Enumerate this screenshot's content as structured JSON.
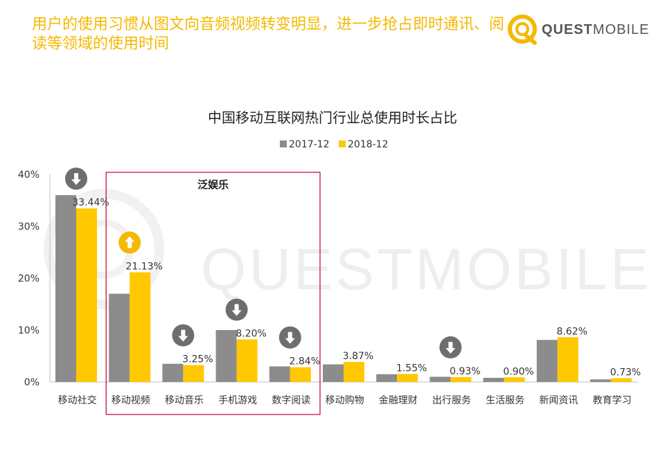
{
  "header": {
    "headline": "用户的使用习惯从图文向音频视频转变明显，进一步抢占即时通讯、阅读等领域的使用时间",
    "logo_bold": "QUEST",
    "logo_light": "MOBILE"
  },
  "watermark": "QUESTMOBILE",
  "colors": {
    "series_2017": "#8c8c8c",
    "series_2018": "#ffc800",
    "headline": "#f5b800",
    "highlight_box": "#c0002a",
    "arrow_down": "#6e6e6e",
    "arrow_up": "#f5b800"
  },
  "chart_data": {
    "type": "bar",
    "title": "中国移动互联网热门行业总使用时长占比",
    "categories": [
      "移动社交",
      "移动视频",
      "移动音乐",
      "手机游戏",
      "数字阅读",
      "移动购物",
      "金融理财",
      "出行服务",
      "生活服务",
      "新闻资讯",
      "教育学习"
    ],
    "series": [
      {
        "name": "2017-12",
        "values": [
          36.0,
          17.0,
          3.5,
          10.0,
          3.0,
          3.4,
          1.5,
          1.0,
          0.8,
          8.1,
          0.5
        ]
      },
      {
        "name": "2018-12",
        "values": [
          33.44,
          21.13,
          3.25,
          8.2,
          2.84,
          3.87,
          1.55,
          0.93,
          0.9,
          8.62,
          0.73
        ]
      }
    ],
    "data_labels": [
      "33.44%",
      "21.13%",
      "3.25%",
      "8.20%",
      "2.84%",
      "3.87%",
      "1.55%",
      "0.93%",
      "0.90%",
      "8.62%",
      "0.73%"
    ],
    "ylim": [
      0,
      40
    ],
    "yticks": [
      "0%",
      "10%",
      "20%",
      "30%",
      "40%"
    ],
    "legend_position": "top-center",
    "grid": false,
    "highlight_region": {
      "label": "泛娱乐",
      "categories": [
        "移动视频",
        "移动音乐",
        "手机游戏",
        "数字阅读"
      ]
    },
    "trend_arrows": [
      {
        "category": "移动社交",
        "direction": "down"
      },
      {
        "category": "移动视频",
        "direction": "up"
      },
      {
        "category": "移动音乐",
        "direction": "down"
      },
      {
        "category": "手机游戏",
        "direction": "down"
      },
      {
        "category": "数字阅读",
        "direction": "down"
      },
      {
        "category": "出行服务",
        "direction": "down"
      }
    ]
  }
}
